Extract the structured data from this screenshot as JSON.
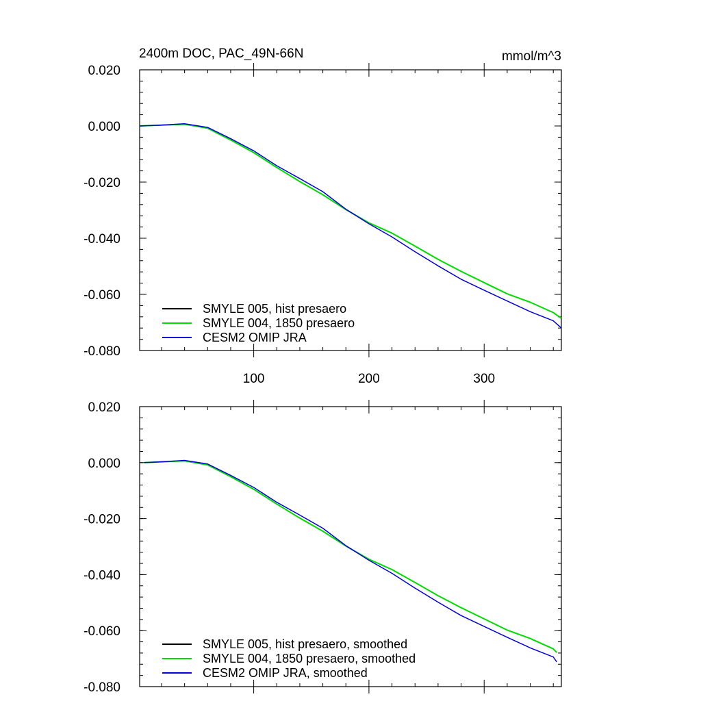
{
  "chart_data": [
    {
      "type": "line",
      "title": "2400m DOC, PAC_49N-66N",
      "units": "mmol/m^3",
      "xlim": [
        1,
        367
      ],
      "ylim": [
        -0.08,
        0.02
      ],
      "x_ticks": [
        100,
        200,
        300
      ],
      "x_tick_labels": [
        "100",
        "200",
        "300"
      ],
      "y_ticks": [
        0.02,
        0.0,
        -0.02,
        -0.04,
        -0.06,
        -0.08
      ],
      "y_tick_labels": [
        "0.020",
        "0.000",
        "-0.020",
        "-0.040",
        "-0.060",
        "-0.080"
      ],
      "legend_position": "bottom-left",
      "series": [
        {
          "name": "SMYLE 005, hist presaero",
          "color": "#000000",
          "x": [
            1,
            20,
            40,
            60,
            80,
            100,
            120,
            140,
            160,
            180,
            200,
            220,
            240,
            260,
            280,
            300,
            320,
            340,
            360,
            367
          ],
          "values": [
            0.0,
            0.0003,
            0.0006,
            -0.0008,
            -0.005,
            -0.0095,
            -0.0148,
            -0.0198,
            -0.0245,
            -0.0298,
            -0.0345,
            -0.0382,
            -0.0428,
            -0.0475,
            -0.0518,
            -0.0558,
            -0.0598,
            -0.0628,
            -0.0665,
            -0.0685
          ]
        },
        {
          "name": "SMYLE 004, 1850 presaero",
          "color": "#00dd00",
          "x": [
            1,
            20,
            40,
            60,
            80,
            100,
            120,
            140,
            160,
            180,
            200,
            220,
            240,
            260,
            280,
            300,
            320,
            340,
            360,
            367
          ],
          "values": [
            0.0,
            0.0003,
            0.0006,
            -0.0008,
            -0.005,
            -0.0095,
            -0.0148,
            -0.0198,
            -0.0245,
            -0.0298,
            -0.0345,
            -0.0382,
            -0.0428,
            -0.0475,
            -0.0518,
            -0.0558,
            -0.0598,
            -0.0628,
            -0.0665,
            -0.0685
          ]
        },
        {
          "name": "CESM2 OMIP JRA",
          "color": "#0000dd",
          "x": [
            1,
            20,
            40,
            60,
            80,
            100,
            120,
            140,
            160,
            180,
            200,
            220,
            240,
            260,
            280,
            300,
            320,
            340,
            360,
            367
          ],
          "values": [
            0.0,
            0.0003,
            0.0008,
            -0.0005,
            -0.0045,
            -0.009,
            -0.014,
            -0.0188,
            -0.0235,
            -0.0295,
            -0.035,
            -0.0395,
            -0.0447,
            -0.05,
            -0.0545,
            -0.0585,
            -0.0625,
            -0.066,
            -0.0695,
            -0.072
          ]
        }
      ]
    },
    {
      "type": "line",
      "title": "",
      "units": "",
      "xlim": [
        1,
        367
      ],
      "ylim": [
        -0.08,
        0.02
      ],
      "x_ticks": [
        100,
        200,
        300
      ],
      "x_tick_labels": [],
      "y_ticks": [
        0.02,
        0.0,
        -0.02,
        -0.04,
        -0.06,
        -0.08
      ],
      "y_tick_labels": [
        "0.020",
        "0.000",
        "-0.020",
        "-0.040",
        "-0.060",
        "-0.080"
      ],
      "legend_position": "bottom-left",
      "series": [
        {
          "name": "SMYLE 005, hist presaero, smoothed",
          "color": "#000000",
          "x": [
            5,
            20,
            40,
            60,
            80,
            100,
            120,
            140,
            160,
            180,
            200,
            220,
            240,
            260,
            280,
            300,
            320,
            340,
            360,
            363
          ],
          "values": [
            0.0,
            0.0003,
            0.0006,
            -0.0008,
            -0.005,
            -0.0095,
            -0.0148,
            -0.0198,
            -0.0245,
            -0.0298,
            -0.0345,
            -0.0382,
            -0.0428,
            -0.0475,
            -0.0518,
            -0.0558,
            -0.0598,
            -0.0628,
            -0.0665,
            -0.0678
          ]
        },
        {
          "name": "SMYLE 004, 1850 presaero, smoothed",
          "color": "#00dd00",
          "x": [
            5,
            20,
            40,
            60,
            80,
            100,
            120,
            140,
            160,
            180,
            200,
            220,
            240,
            260,
            280,
            300,
            320,
            340,
            360,
            363
          ],
          "values": [
            0.0,
            0.0003,
            0.0006,
            -0.0008,
            -0.005,
            -0.0095,
            -0.0148,
            -0.0198,
            -0.0245,
            -0.0298,
            -0.0345,
            -0.0382,
            -0.0428,
            -0.0475,
            -0.0518,
            -0.0558,
            -0.0598,
            -0.0628,
            -0.0665,
            -0.0678
          ]
        },
        {
          "name": "CESM2 OMIP JRA, smoothed",
          "color": "#0000dd",
          "x": [
            5,
            20,
            40,
            60,
            80,
            100,
            120,
            140,
            160,
            180,
            200,
            220,
            240,
            260,
            280,
            300,
            320,
            340,
            360,
            363
          ],
          "values": [
            0.0,
            0.0003,
            0.0008,
            -0.0005,
            -0.0045,
            -0.009,
            -0.014,
            -0.0188,
            -0.0235,
            -0.0295,
            -0.035,
            -0.0395,
            -0.0447,
            -0.05,
            -0.0545,
            -0.0585,
            -0.0625,
            -0.066,
            -0.0695,
            -0.0712
          ]
        }
      ]
    }
  ]
}
